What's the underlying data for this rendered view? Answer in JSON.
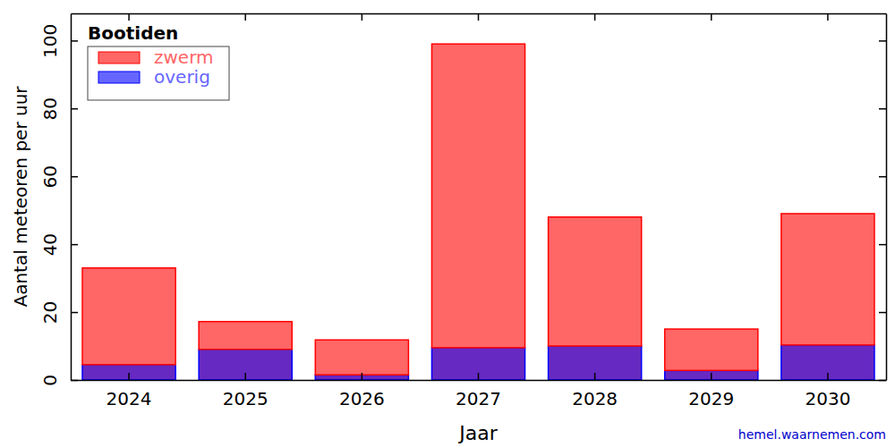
{
  "chart_data": {
    "type": "bar",
    "title": "Bootiden",
    "stacked": true,
    "legend": "upper left",
    "categories": [
      "2024",
      "2025",
      "2026",
      "2027",
      "2028",
      "2029",
      "2030"
    ],
    "series": [
      {
        "name": "zwerm",
        "color": "#ff0000",
        "values": [
          28.5,
          8.2,
          10.3,
          89.5,
          38,
          12.2,
          38.7
        ]
      },
      {
        "name": "overig",
        "color": "#0000ff",
        "values": [
          4.5,
          9,
          1.5,
          9.5,
          10,
          2.8,
          10.3
        ]
      }
    ],
    "x_label": "Jaar",
    "y_label": "Aantal meteoren per uur",
    "ylim": [
      0,
      108
    ],
    "yticks": [
      0,
      20,
      40,
      60,
      80,
      100
    ],
    "annotations": [
      "hemel.waarnemen.com"
    ]
  }
}
